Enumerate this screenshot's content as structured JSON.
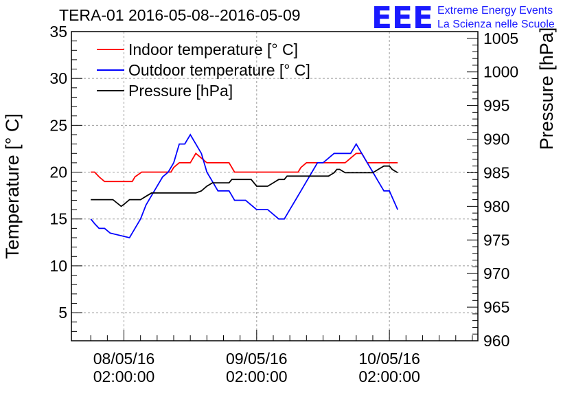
{
  "logo": {
    "mark": "EEE",
    "line1": "Extreme Energy Events",
    "line2": "La Scienza nelle Scuole"
  },
  "colors": {
    "indoor": "#ff0000",
    "outdoor": "#0000ff",
    "pressure": "#000000",
    "logo": "#1a1aff",
    "grid": "#9a9a9a"
  },
  "chart_data": {
    "type": "line",
    "title": "TERA-01 2016-05-08--2016-05-09",
    "x_unit": "hours since 08/05/16 00:00:00",
    "xlim": [
      -7.5,
      66
    ],
    "xticks": [
      {
        "x": 2,
        "line1": "08/05/16",
        "line2": "02:00:00"
      },
      {
        "x": 26,
        "line1": "09/05/16",
        "line2": "02:00:00"
      },
      {
        "x": 50,
        "line1": "10/05/16",
        "line2": "02:00:00"
      }
    ],
    "left_axis": {
      "label": "Temperature [° C]",
      "ylim": [
        2,
        35
      ],
      "ticks": [
        5,
        10,
        15,
        20,
        25,
        30,
        35
      ]
    },
    "right_axis": {
      "label": "Pressure [hPa]",
      "ylim": [
        960,
        1006
      ],
      "ticks": [
        960,
        965,
        970,
        975,
        980,
        985,
        990,
        995,
        1000,
        1005
      ]
    },
    "legend": {
      "position": "top-left",
      "entries": [
        "Indoor temperature [° C]",
        "Outdoor temperature [° C]",
        "Pressure [hPa]"
      ]
    },
    "series": [
      {
        "name": "Indoor temperature [° C]",
        "axis": "left",
        "color": "#ff0000",
        "x": [
          -4,
          -3.3,
          -2.5,
          -1.5,
          3.5,
          4,
          5.2,
          10.5,
          11,
          12,
          13,
          14,
          14.5,
          15,
          16,
          17,
          17.5,
          21,
          22,
          33.5,
          34,
          35,
          42,
          43,
          44,
          45,
          45.5,
          46,
          47,
          48,
          50.5,
          51.5
        ],
        "values": [
          20,
          20,
          19.5,
          19,
          19,
          19.5,
          20,
          20,
          20.5,
          21,
          21,
          21,
          21.5,
          22,
          21.5,
          21,
          21,
          21,
          20,
          20,
          20.5,
          21,
          21,
          21.5,
          22,
          22,
          21.5,
          21,
          21,
          21,
          21,
          21
        ]
      },
      {
        "name": "Outdoor temperature [° C]",
        "axis": "left",
        "color": "#0000ff",
        "x": [
          -4,
          -3.3,
          -2.5,
          -1.5,
          -0.5,
          3,
          4,
          5,
          6,
          7,
          9,
          10,
          11,
          12,
          13,
          14,
          15,
          16,
          17,
          18,
          19,
          21,
          21.5,
          22,
          24,
          26,
          27,
          28,
          30,
          31,
          32,
          33,
          34,
          35,
          36,
          37,
          38,
          40,
          41,
          42,
          43,
          44,
          45,
          46,
          47,
          48,
          49,
          50,
          51.5
        ],
        "values": [
          15,
          14.5,
          14,
          14,
          13.5,
          13,
          14,
          15,
          16.5,
          17.5,
          19.5,
          20,
          21,
          23,
          23,
          24,
          23,
          22,
          20,
          19,
          18,
          18,
          17.5,
          17,
          17,
          16,
          16,
          16,
          15,
          15,
          16,
          17,
          18,
          19,
          20,
          21,
          21,
          22,
          22,
          22,
          22,
          23,
          22,
          21,
          20,
          19,
          18,
          18,
          16
        ]
      },
      {
        "name": "Pressure [hPa]",
        "axis": "right",
        "color": "#000000",
        "x": [
          -4,
          0,
          1.5,
          2,
          3,
          5,
          6,
          7,
          15,
          16,
          17,
          18,
          21,
          21.5,
          25,
          26,
          28,
          29,
          30,
          31,
          31.5,
          36,
          39,
          40,
          40.5,
          41,
          42,
          43,
          44,
          45,
          46,
          47,
          48,
          49,
          50,
          50.5,
          51.5
        ],
        "values": [
          981,
          981,
          980,
          980.3,
          981,
          981,
          981.5,
          982,
          982,
          982.3,
          983,
          983.5,
          983.5,
          984,
          984,
          983,
          983,
          983.5,
          984,
          984,
          984.5,
          984.5,
          984.5,
          985,
          985.5,
          985.5,
          985,
          985,
          985,
          985,
          985,
          985,
          985.5,
          986,
          986,
          985.5,
          985
        ]
      }
    ]
  }
}
